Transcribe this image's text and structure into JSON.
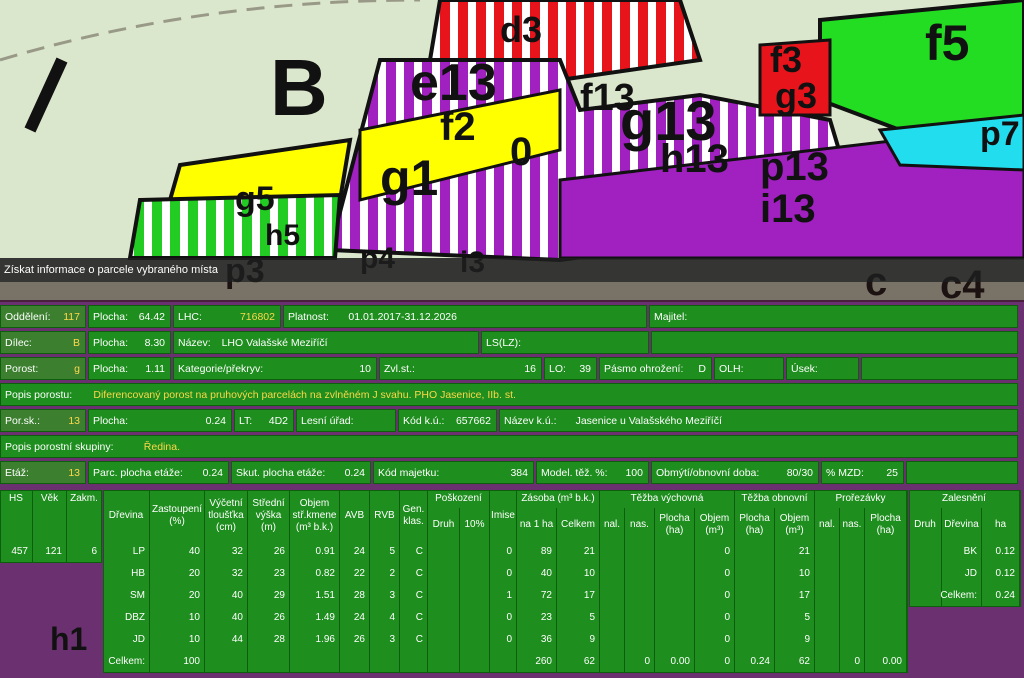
{
  "header": {
    "title": "Získat informace o parcele vybraného místa"
  },
  "map": {
    "labels": [
      "B",
      "d3",
      "e13",
      "f2",
      "g1",
      "0",
      "f13",
      "g13",
      "h13",
      "p13",
      "i13",
      "g5",
      "h5",
      "p3",
      "p4",
      "i3",
      "c",
      "c4",
      "f5",
      "f3",
      "g3",
      "p7",
      "h1"
    ]
  },
  "info": {
    "rows": [
      [
        {
          "label": "Oddělení:",
          "value": 117
        },
        {
          "label": "Plocha:",
          "value": 64.42
        },
        {
          "label": "LHC:",
          "value": 716802
        },
        {
          "label": "Platnost:",
          "value": "01.01.2017-31.12.2026"
        },
        {
          "label": "Majitel:"
        }
      ],
      [
        {
          "label": "Dílec:",
          "value": "B"
        },
        {
          "label": "Plocha:",
          "value": "8.30"
        },
        {
          "label": "Název:",
          "value": "LHO Valašské Meziříčí"
        },
        {
          "label": "LS(LZ):"
        }
      ],
      [
        {
          "label": "Porost:",
          "value": "g"
        },
        {
          "label": "Plocha:",
          "value": 1.11
        },
        {
          "label": "Kategorie/překryv:",
          "value": 10
        },
        {
          "label": "Zvl.st.:",
          "value": 16
        },
        {
          "label": "LO:",
          "value": 39
        },
        {
          "label": "Pásmo ohrožení:",
          "value": "D"
        },
        {
          "label": "OLH:"
        },
        {
          "label": "Úsek:"
        }
      ],
      [
        {
          "label": "Popis porostu:",
          "value": "Diferencovaný porost na pruhových parcelách na zvlněném J svahu. PHO Jasenice, IIb. st."
        }
      ],
      [
        {
          "label": "Por.sk.:",
          "value": 13
        },
        {
          "label": "Plocha:",
          "value": 0.24
        },
        {
          "label": "LT:",
          "value": "4D2"
        },
        {
          "label": "Lesní úřad:"
        },
        {
          "label": "Kód k.ú.:",
          "value": 657662
        },
        {
          "label": "Název k.ú.:",
          "value": "Jasenice u Valašského Meziříčí"
        }
      ],
      [
        {
          "label": "Popis porostní skupiny:",
          "value": "Ředina."
        }
      ],
      [
        {
          "label": "Etáž:",
          "value": 13
        },
        {
          "label": "Parc. plocha etáže:",
          "value": 0.24
        },
        {
          "label": "Skut. plocha etáže:",
          "value": 0.24
        },
        {
          "label": "Kód majetku:",
          "value": 384
        },
        {
          "label": "Model. těž. %:",
          "value": 100
        },
        {
          "label": "Obmýtí/obnovní doba:",
          "value": "80/30"
        },
        {
          "label": "% MZD:",
          "value": 25
        }
      ]
    ]
  },
  "stand_table": {
    "headers": [
      "HS",
      "Věk",
      "Zakm."
    ],
    "row": [
      457,
      121,
      6
    ]
  },
  "species_table": {
    "columns": [
      {
        "label": [
          "Dřevina"
        ]
      },
      {
        "label": [
          "Zastoupení",
          "(%)"
        ]
      },
      {
        "label": [
          "Výčetní",
          "tloušťka",
          "(cm)"
        ]
      },
      {
        "label": [
          "Střední",
          "výška",
          "(m)"
        ]
      },
      {
        "label": [
          "Objem",
          "stř.kmene",
          "(m³ b.k.)"
        ]
      },
      {
        "label": [
          "AVB"
        ]
      },
      {
        "label": [
          "RVB"
        ]
      },
      {
        "label": [
          "Gen.",
          "klas."
        ]
      },
      {
        "group": "Poškození",
        "columns": [
          {
            "label": [
              "Druh"
            ]
          },
          {
            "label": [
              "10%"
            ]
          }
        ]
      },
      {
        "label": [
          "Imise"
        ]
      },
      {
        "group": "Zásoba (m³ b.k.)",
        "columns": [
          {
            "label": [
              "na 1 ha"
            ]
          },
          {
            "label": [
              "Celkem"
            ]
          }
        ]
      },
      {
        "group": "Těžba výchovná",
        "columns": [
          {
            "label": [
              "nal."
            ]
          },
          {
            "label": [
              "nas."
            ]
          },
          {
            "label": [
              "Plocha",
              "(ha)"
            ]
          },
          {
            "label": [
              "Objem",
              "(m³)"
            ]
          }
        ]
      },
      {
        "group": "Těžba obnovní",
        "columns": [
          {
            "label": [
              "Plocha",
              "(ha)"
            ]
          },
          {
            "label": [
              "Objem",
              "(m³)"
            ]
          }
        ]
      },
      {
        "group": "Prořezávky",
        "columns": [
          {
            "label": [
              "nal."
            ]
          },
          {
            "label": [
              "nas."
            ]
          },
          {
            "label": [
              "Plocha",
              "(ha)"
            ]
          }
        ]
      }
    ],
    "rows": [
      [
        "LP",
        40,
        32,
        26,
        0.91,
        24,
        5,
        "C",
        null,
        null,
        0,
        89,
        21,
        null,
        null,
        null,
        0,
        null,
        21,
        null,
        null,
        null
      ],
      [
        "HB",
        20,
        32,
        23,
        0.82,
        22,
        2,
        "C",
        null,
        null,
        0,
        40,
        10,
        null,
        null,
        null,
        0,
        null,
        10,
        null,
        null,
        null
      ],
      [
        "SM",
        20,
        40,
        29,
        1.51,
        28,
        3,
        "C",
        null,
        null,
        1,
        72,
        17,
        null,
        null,
        null,
        0,
        null,
        17,
        null,
        null,
        null
      ],
      [
        "DBZ",
        10,
        40,
        26,
        1.49,
        24,
        4,
        "C",
        null,
        null,
        0,
        23,
        5,
        null,
        null,
        null,
        0,
        null,
        5,
        null,
        null,
        null
      ],
      [
        "JD",
        10,
        44,
        28,
        1.96,
        26,
        3,
        "C",
        null,
        null,
        0,
        36,
        9,
        null,
        null,
        null,
        0,
        null,
        9,
        null,
        null,
        null
      ],
      [
        "Celkem:",
        100,
        null,
        null,
        null,
        null,
        null,
        null,
        null,
        null,
        null,
        260,
        62,
        null,
        0,
        "0.00",
        0,
        0.24,
        62,
        null,
        0,
        "0.00"
      ]
    ]
  },
  "afforestation": {
    "group": "Zalesnění",
    "headers": [
      "Druh",
      "Dřevina",
      "ha"
    ],
    "rows": [
      [
        null,
        "BK",
        0.12
      ],
      [
        null,
        "JD",
        0.12
      ],
      [
        null,
        "Celkem:",
        0.24
      ]
    ]
  }
}
